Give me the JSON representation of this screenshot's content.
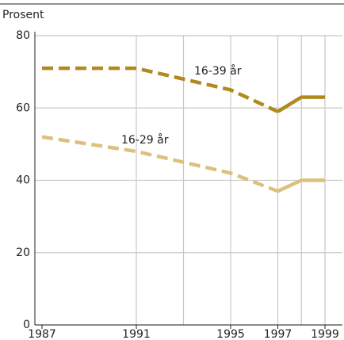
{
  "chart_data": {
    "type": "line",
    "ylabel": "Prosent",
    "x": [
      1987,
      1991,
      1993,
      1995,
      1997,
      1998,
      1999
    ],
    "series": [
      {
        "name": "16-39 år",
        "color": "#b08a1e",
        "values": [
          71,
          71,
          68,
          65,
          59,
          63,
          63
        ]
      },
      {
        "name": "16-29 år",
        "color": "#dcc07c",
        "values": [
          52,
          48,
          45,
          42,
          37,
          40,
          40
        ]
      }
    ],
    "dashed_until": 1997,
    "xlim": [
      1987,
      1999
    ],
    "xticks": [
      1987,
      1991,
      1995,
      1997,
      1999
    ],
    "xgrid": [
      1993,
      1998
    ],
    "ylim": [
      0,
      80
    ],
    "yticks": [
      0,
      20,
      40,
      60,
      80
    ],
    "grid": true
  }
}
